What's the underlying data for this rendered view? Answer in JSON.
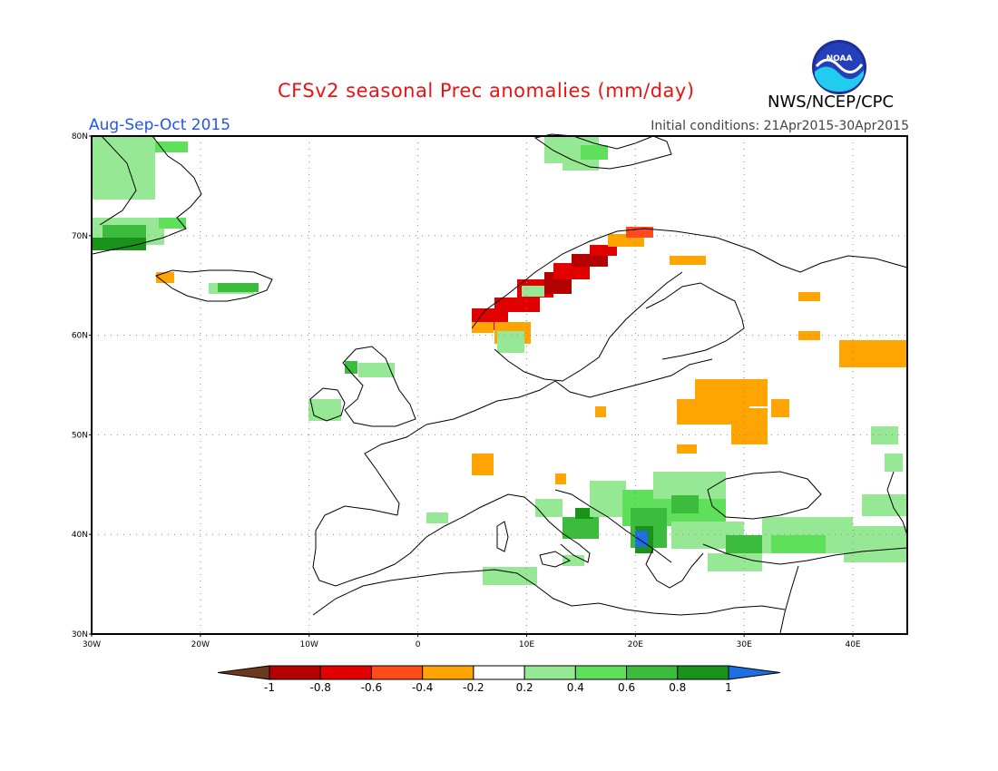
{
  "title": "CFSv2 seasonal Prec anomalies (mm/day)",
  "period": "Aug-Sep-Oct 2015",
  "initial_conditions": "Initial conditions: 21Apr2015-30Apr2015",
  "agency": "NWS/NCEP/CPC",
  "logo": {
    "text": "NOAA",
    "icon": "noaa-logo-icon"
  },
  "map": {
    "region": "Europe",
    "lon_range": [
      -30,
      45
    ],
    "lat_range": [
      30,
      80
    ],
    "gridlines": "dotted",
    "lat_labels": [
      "80N",
      "70N",
      "60N",
      "50N",
      "40N",
      "30N"
    ],
    "lon_labels": [
      "30W",
      "20W",
      "10W",
      "0",
      "10E",
      "20E",
      "30E",
      "40E"
    ]
  },
  "colorbar": {
    "labels": [
      "-1",
      "-0.8",
      "-0.6",
      "-0.4",
      "-0.2",
      "0.2",
      "0.4",
      "0.6",
      "0.8",
      "1"
    ],
    "colors": [
      "#6b3a1e",
      "#b30000",
      "#e00000",
      "#ff4a1a",
      "#ffa400",
      "#ffffff",
      "#96e895",
      "#5fe05a",
      "#3cbc3c",
      "#199219",
      "#1e6fe0"
    ]
  },
  "anomaly_regions": [
    {
      "name": "Greenland east coast",
      "category": "0.2 to 0.4"
    },
    {
      "name": "Norway west coast",
      "category": "-0.8 to -0.4"
    },
    {
      "name": "Western Russia / Belarus",
      "category": "-0.4 to -0.2"
    },
    {
      "name": "Balkans",
      "category": "0.4 to 1"
    },
    {
      "name": "Turkey",
      "category": "0.2 to 0.6"
    }
  ]
}
